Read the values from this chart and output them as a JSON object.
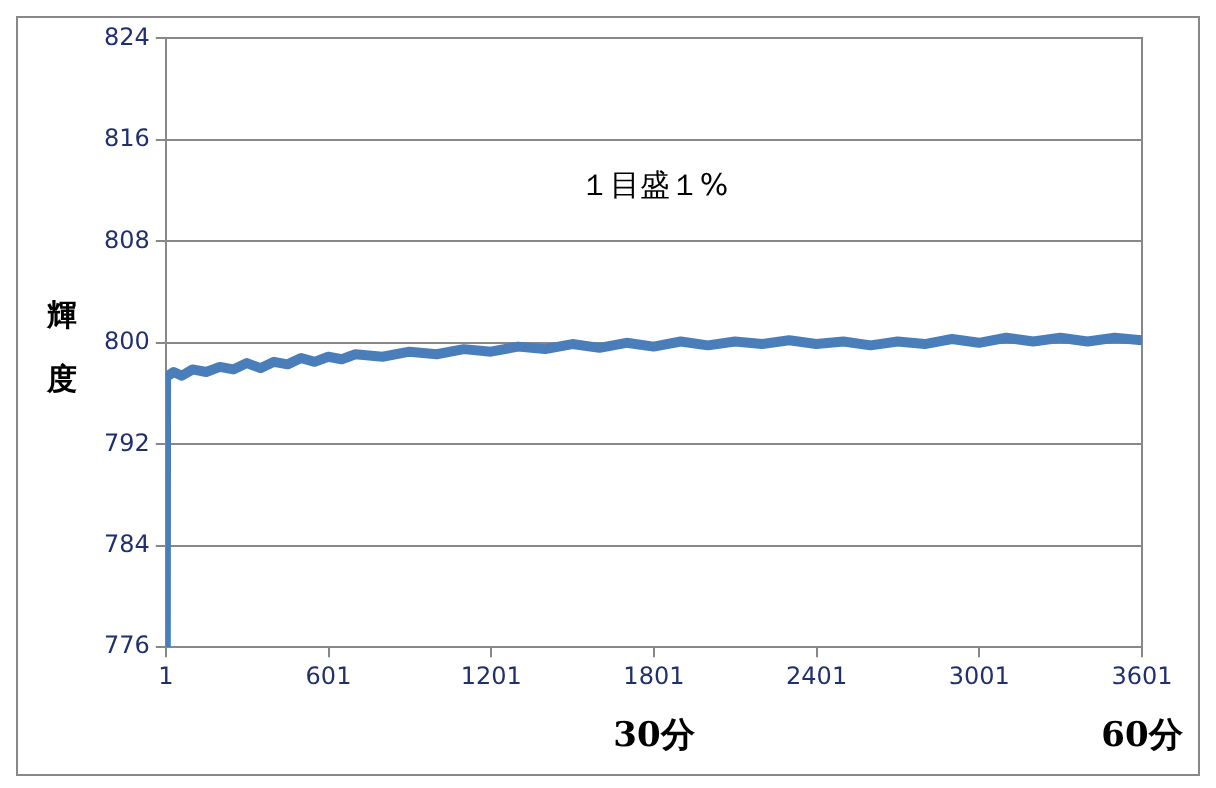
{
  "chart_data": {
    "type": "line",
    "ylabel": "輝度",
    "annotations": [
      "１目盛１%",
      "30分",
      "60分"
    ],
    "series": [
      {
        "color": "#4a7ebb",
        "x": [
          1,
          2,
          30,
          60,
          100,
          150,
          200,
          250,
          300,
          350,
          400,
          450,
          500,
          550,
          600,
          650,
          700,
          800,
          900,
          1000,
          1100,
          1200,
          1300,
          1400,
          1500,
          1600,
          1700,
          1800,
          1900,
          2000,
          2100,
          2200,
          2300,
          2400,
          2500,
          2600,
          2700,
          2800,
          2900,
          3000,
          3100,
          3200,
          3300,
          3400,
          3500,
          3601
        ],
        "values": [
          776,
          797.3,
          797.7,
          797.4,
          797.9,
          797.7,
          798.1,
          797.9,
          798.4,
          798.0,
          798.5,
          798.3,
          798.8,
          798.5,
          798.9,
          798.7,
          799.1,
          798.9,
          799.3,
          799.1,
          799.5,
          799.3,
          799.7,
          799.5,
          799.9,
          799.6,
          800.0,
          799.7,
          800.1,
          799.8,
          800.1,
          799.9,
          800.2,
          799.9,
          800.1,
          799.8,
          800.1,
          799.9,
          800.3,
          800.0,
          800.4,
          800.1,
          800.4,
          800.1,
          800.4,
          800.2
        ]
      }
    ],
    "xlim": [
      1,
      3601
    ],
    "xticks": [
      1,
      601,
      1201,
      1801,
      2401,
      3001,
      3601
    ],
    "ylim": [
      776,
      824
    ],
    "yticks": [
      776,
      784,
      792,
      800,
      808,
      816,
      824
    ],
    "grid": "y",
    "legend": false,
    "marker": "none",
    "line_style": "solid"
  }
}
